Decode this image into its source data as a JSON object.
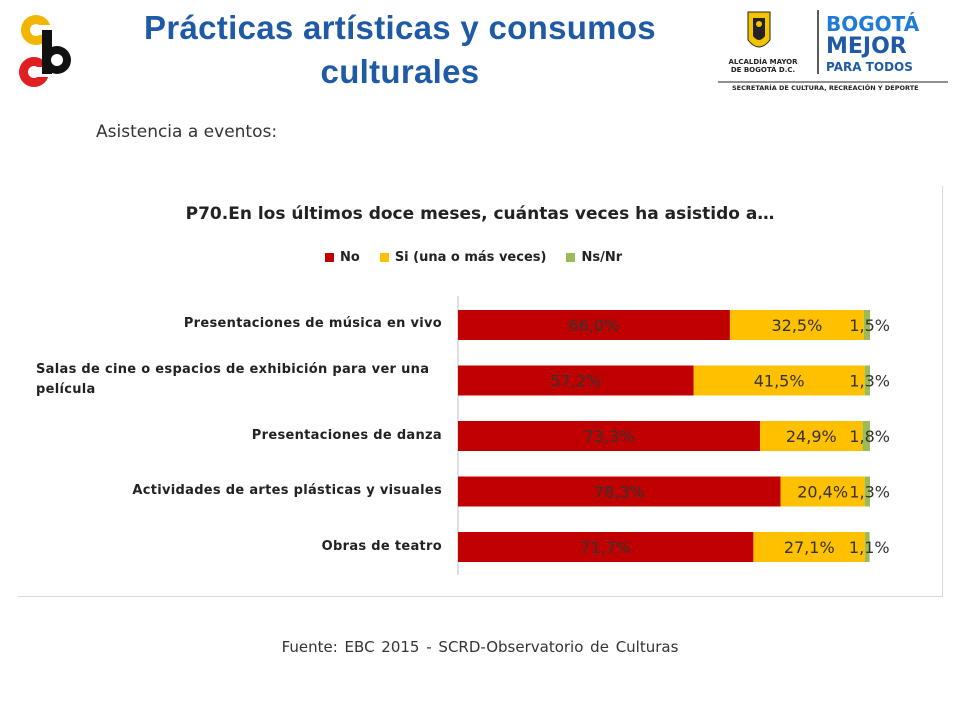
{
  "header": {
    "title_line1": "Prácticas artísticas y consumos",
    "title_line2": "culturales",
    "logo_right": {
      "alcaldia": "ALCALDÍA MAYOR DE BOGOTÁ D.C.",
      "brand_line1": "BOGOTÁ",
      "brand_line2": "MEJOR",
      "brand_line3": "PARA TODOS",
      "secretaria": "SECRETARÍA DE CULTURA, RECREACIÓN Y DEPORTE"
    }
  },
  "subtitle": "Asistencia a eventos:",
  "source": "Fuente: EBC  2015 - SCRD-Observatorio  de Culturas",
  "colors": {
    "no": "#c00000",
    "si": "#ffc000",
    "nsnr": "#9bbb59",
    "title": "#1f5aa6"
  },
  "chart_data": {
    "type": "bar",
    "orientation": "horizontal",
    "stacked": true,
    "title": "P70.En los últimos doce meses, cuántas veces ha asistido a…",
    "categories": [
      "Presentaciones de música en vivo",
      "Salas de cine o espacios de exhibición para ver una película",
      "Presentaciones de danza",
      "Actividades de artes plásticas y visuales",
      "Obras de teatro"
    ],
    "series": [
      {
        "name": "No",
        "values": [
          66.0,
          57.2,
          73.3,
          78.3,
          71.7
        ],
        "labels": [
          "66,0%",
          "57,2%",
          "73,3%",
          "78,3%",
          "71,7%"
        ]
      },
      {
        "name": "Si (una o más veces)",
        "values": [
          32.5,
          41.5,
          24.9,
          20.4,
          27.1
        ],
        "labels": [
          "32,5%",
          "41,5%",
          "24,9%",
          "20,4%",
          "27,1%"
        ]
      },
      {
        "name": "Ns/Nr",
        "values": [
          1.5,
          1.3,
          1.8,
          1.3,
          1.1
        ],
        "labels": [
          "1,5%",
          "1,3%",
          "1,8%",
          "1,3%",
          "1,1%"
        ]
      }
    ],
    "xlim": [
      0,
      100
    ],
    "legend_position": "top",
    "grid": false
  }
}
